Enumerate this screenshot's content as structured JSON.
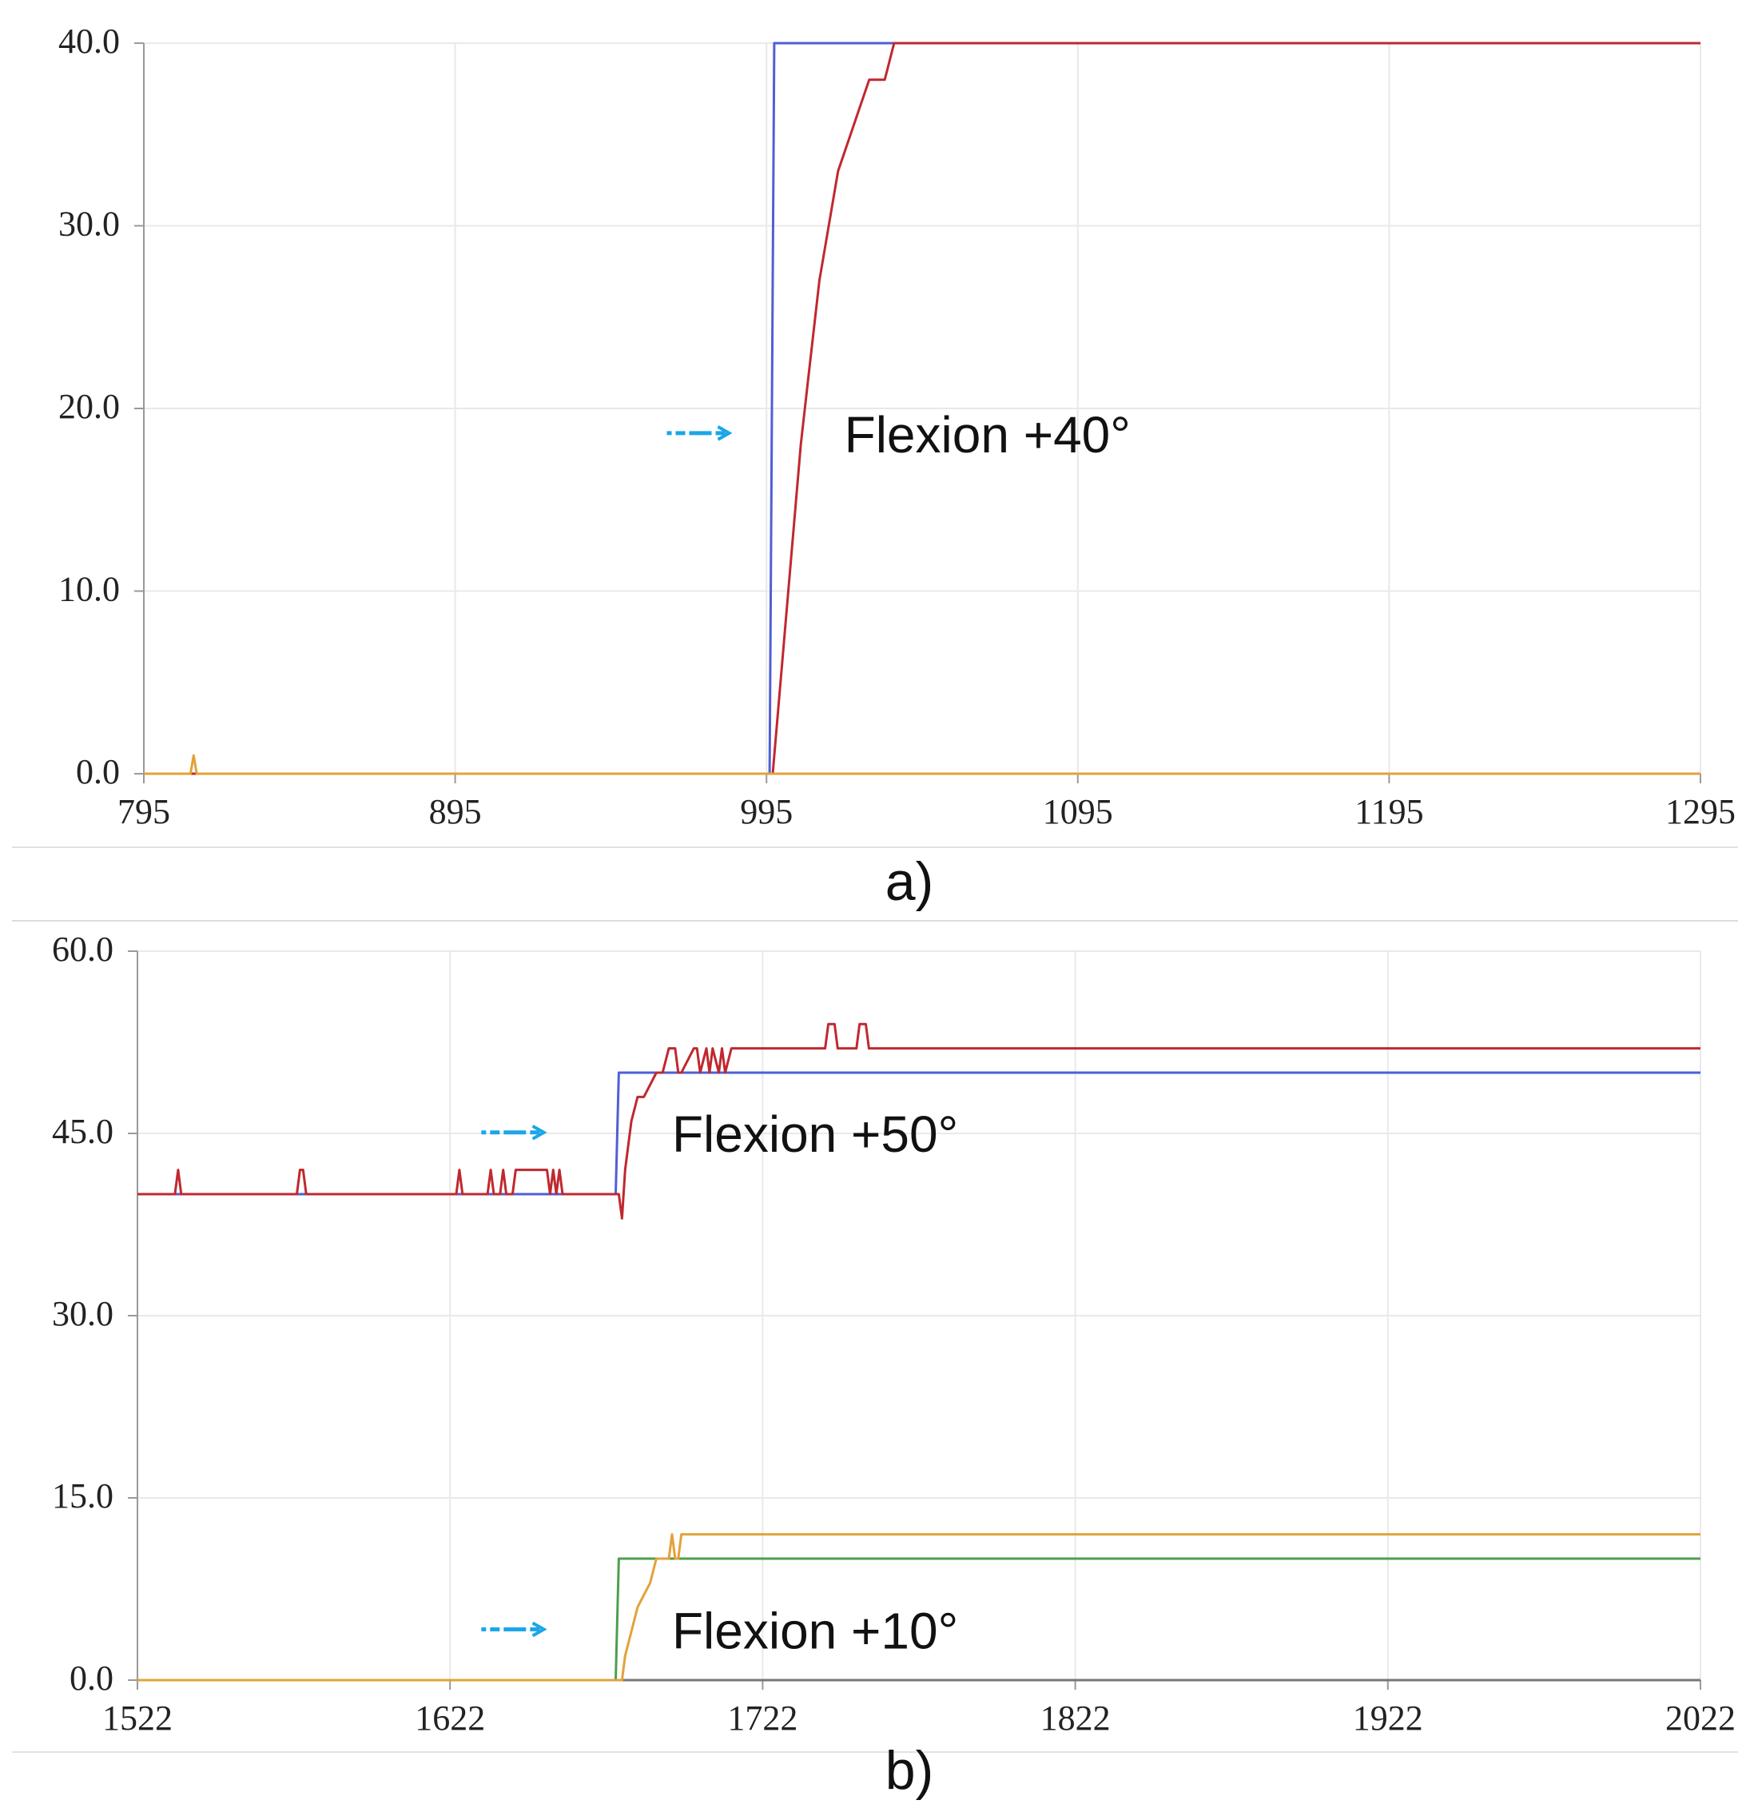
{
  "colors": {
    "setpoint_blue": "#4f5fd6",
    "measured_red": "#c0282f",
    "measured_orange": "#e3a23a",
    "setpoint_green": "#4e9e4e",
    "arrow": "#1aa6e8",
    "grid": "#e9e9e9",
    "axis": "#999999"
  },
  "chart_data": [
    {
      "type": "line",
      "caption": "a)",
      "xlim": [
        795,
        1295
      ],
      "ylim": [
        0,
        40
      ],
      "x_ticks": [
        "795",
        "895",
        "995",
        "1095",
        "1195",
        "1295"
      ],
      "y_ticks": [
        "0.0",
        "10.0",
        "20.0",
        "30.0",
        "40.0"
      ],
      "grid": true,
      "series": [
        {
          "color": "#4f5fd6",
          "x": [
            795,
            996,
            997.5,
            1295
          ],
          "y": [
            0,
            0,
            40,
            40
          ]
        },
        {
          "color": "#c0282f",
          "x": [
            795,
            997,
            998,
            1000,
            1002,
            1004,
            1006,
            1008,
            1010,
            1012,
            1014,
            1016,
            1018,
            1020,
            1022,
            1024,
            1026,
            1028,
            1030,
            1033,
            1036,
            1295
          ],
          "y": [
            0,
            0,
            2,
            6,
            10,
            14,
            18,
            21,
            24,
            27,
            29,
            31,
            33,
            34,
            35,
            36,
            37,
            38,
            38,
            38,
            40,
            40
          ]
        },
        {
          "color": "#e3a23a",
          "x": [
            795,
            810,
            811,
            812,
            1295
          ],
          "y": [
            0,
            0,
            1,
            0,
            0
          ]
        }
      ],
      "annotations": [
        {
          "text": "Flexion +40°",
          "x": 1020,
          "y": 17.6,
          "arrow_x": [
            963,
            983
          ]
        }
      ]
    },
    {
      "type": "line",
      "caption": "b)",
      "xlim": [
        1522,
        2022
      ],
      "ylim": [
        0,
        60
      ],
      "x_ticks": [
        "1522",
        "1622",
        "1722",
        "1822",
        "1922",
        "2022"
      ],
      "y_ticks": [
        "0.0",
        "15.0",
        "30.0",
        "45.0",
        "60.0"
      ],
      "grid": true,
      "series": [
        {
          "color": "#4f5fd6",
          "x": [
            1522,
            1675,
            1676,
            2022
          ],
          "y": [
            40,
            40,
            50,
            50
          ]
        },
        {
          "color": "#c0282f",
          "x": [
            1522,
            1534,
            1535,
            1536,
            1573,
            1574,
            1575,
            1576,
            1624,
            1625,
            1626,
            1634,
            1635,
            1636,
            1638,
            1639,
            1640,
            1642,
            1643,
            1653,
            1654,
            1655,
            1656,
            1657,
            1658,
            1676,
            1677,
            1678,
            1680,
            1682,
            1684,
            1688,
            1690,
            1692,
            1694,
            1695,
            1696,
            1700,
            1701,
            1702,
            1704,
            1705,
            1706,
            1708,
            1709,
            1710,
            1712,
            1713,
            1714,
            1742,
            1743,
            1745,
            1746,
            1747,
            1752,
            1753,
            1755,
            1756,
            1757,
            2022
          ],
          "y": [
            40,
            40,
            42,
            40,
            40,
            42,
            42,
            40,
            40,
            42,
            40,
            40,
            42,
            40,
            40,
            42,
            40,
            40,
            42,
            42,
            40,
            42,
            40,
            42,
            40,
            40,
            38,
            42,
            46,
            48,
            48,
            50,
            50,
            52,
            52,
            50,
            50,
            52,
            52,
            50,
            52,
            50,
            52,
            50,
            52,
            50,
            52,
            52,
            52,
            52,
            54,
            54,
            52,
            52,
            52,
            54,
            54,
            52,
            52,
            52
          ]
        },
        {
          "color": "#4e9e4e",
          "x": [
            1522,
            1675,
            1676,
            2022
          ],
          "y": [
            0,
            0,
            10,
            10
          ]
        },
        {
          "color": "#e3a23a",
          "x": [
            1522,
            1677,
            1678,
            1680,
            1682,
            1684,
            1686,
            1688,
            1692,
            1693,
            1694,
            1695,
            1696,
            1697,
            2022
          ],
          "y": [
            0,
            0,
            2,
            4,
            6,
            7,
            8,
            10,
            10,
            12,
            10,
            10,
            12,
            12,
            12
          ]
        }
      ],
      "annotations": [
        {
          "text": "Flexion +50°",
          "x": 1693,
          "y": 43.5,
          "arrow_x": [
            1632,
            1652
          ]
        },
        {
          "text": "Flexion +10°",
          "x": 1693,
          "y": 2.6,
          "arrow_x": [
            1632,
            1652
          ]
        }
      ]
    }
  ]
}
